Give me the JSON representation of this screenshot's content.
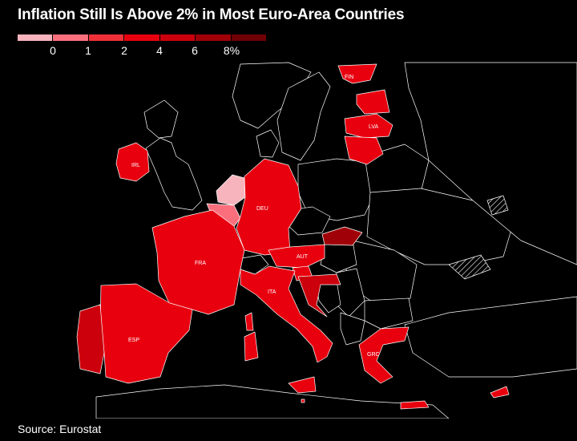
{
  "title": "Inflation Still Is Above 2% in Most Euro-Area Countries",
  "legend": {
    "colors": [
      "#f7b4bc",
      "#fb6f7d",
      "#f03038",
      "#e8000f",
      "#cb000c",
      "#a00008",
      "#6e0006"
    ],
    "ticks": [
      "0",
      "1",
      "2",
      "4",
      "6",
      "8%"
    ]
  },
  "countries": {
    "fin": "FIN",
    "lva": "LVA",
    "irl": "IRL",
    "deu": "DEU",
    "fra": "FRA",
    "aut": "AUT",
    "ita": "ITA",
    "esp": "ESP",
    "grc": "GRC"
  },
  "source": "Source: Eurostat"
}
